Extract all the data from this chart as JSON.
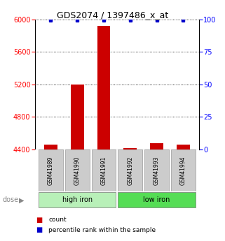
{
  "title": "GDS2074 / 1397486_x_at",
  "samples": [
    "GSM41989",
    "GSM41990",
    "GSM41991",
    "GSM41992",
    "GSM41993",
    "GSM41994"
  ],
  "counts": [
    4460,
    5200,
    5920,
    4420,
    4480,
    4460
  ],
  "percentile_ranks": [
    99,
    99,
    99,
    99,
    99,
    99
  ],
  "ylim_left": [
    4400,
    6000
  ],
  "ylim_right": [
    0,
    100
  ],
  "yticks_left": [
    4400,
    4800,
    5200,
    5600,
    6000
  ],
  "yticks_right": [
    0,
    25,
    50,
    75,
    100
  ],
  "groups": [
    {
      "label": "high iron",
      "indices": [
        0,
        1,
        2
      ],
      "color": "#b8f0b8"
    },
    {
      "label": "low iron",
      "indices": [
        3,
        4,
        5
      ],
      "color": "#55dd55"
    }
  ],
  "bar_color": "#cc0000",
  "dot_color": "#0000cc",
  "bar_baseline": 4400,
  "label_box_color": "#cccccc",
  "dose_label": "dose",
  "legend_count": "count",
  "legend_pct": "percentile rank within the sample"
}
